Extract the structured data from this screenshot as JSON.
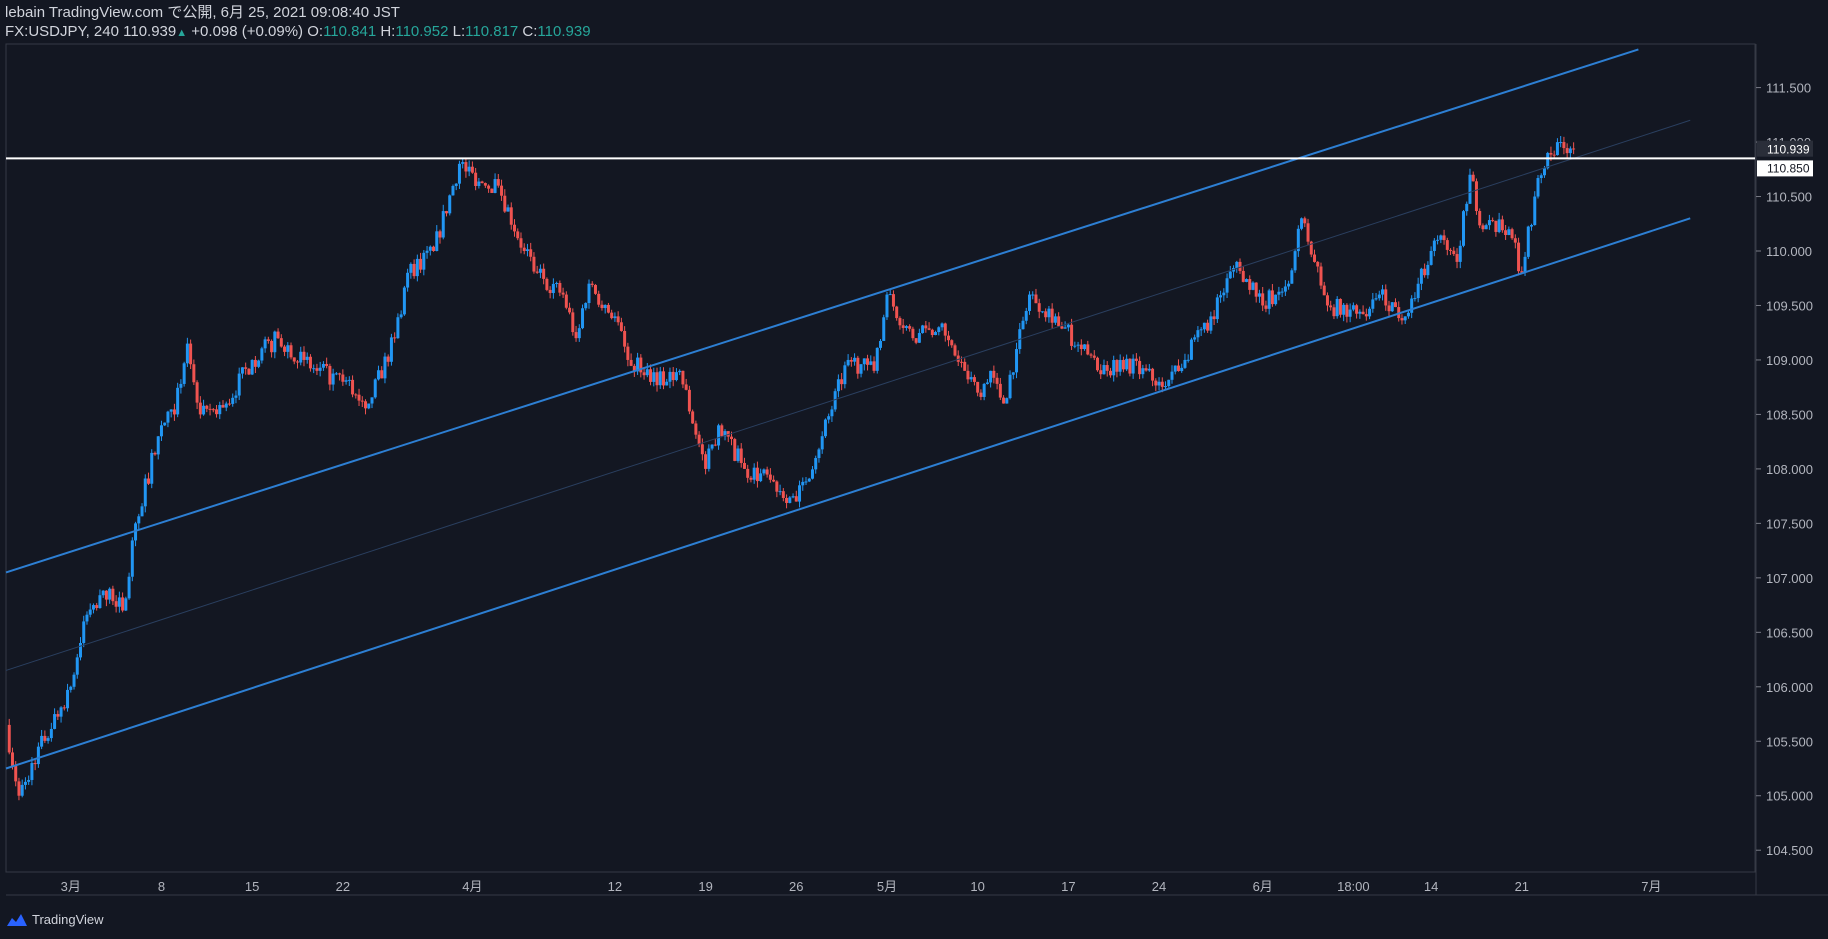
{
  "header": {
    "published": "lebain TradingView.com で公開, 6月 25, 2021 09:08:40 JST",
    "symbol": "FX:USDJPY, 240",
    "last": "110.939",
    "change": "+0.098 (+0.09%)",
    "o_label": "O:",
    "o_value": "110.841",
    "h_label": "H:",
    "h_value": "110.952",
    "l_label": "L:",
    "l_value": "110.817",
    "c_label": "C:",
    "c_value": "110.939"
  },
  "footer": {
    "brand": "TradingView"
  },
  "colors": {
    "background": "#131722",
    "up": "#2196f3",
    "down": "#ef5350",
    "channel": "#2d7fd3",
    "text": "#d1d4dc",
    "accent": "#26a69a"
  },
  "chart_data": {
    "type": "candlestick",
    "symbol": "USDJPY",
    "interval": "240",
    "x_tick_labels": [
      "3月",
      "8",
      "15",
      "22",
      "4月",
      "12",
      "19",
      "26",
      "5月",
      "10",
      "17",
      "24",
      "6月",
      "18:00",
      "14",
      "21",
      "7月"
    ],
    "y_tick_labels": [
      "111.500",
      "111.000",
      "110.500",
      "110.000",
      "109.500",
      "109.000",
      "108.500",
      "108.000",
      "107.500",
      "107.000",
      "106.500",
      "106.000",
      "105.500",
      "105.000",
      "104.500"
    ],
    "ylim": [
      104.3,
      111.9
    ],
    "horizontal_line": 110.85,
    "price_labels": [
      "110.939",
      "110.850"
    ],
    "channel": {
      "upper": [
        [
          "2021-02-24",
          107.05
        ],
        [
          "2021-06-30",
          111.85
        ]
      ],
      "lower": [
        [
          "2021-02-24",
          105.25
        ],
        [
          "2021-07-04",
          110.3
        ]
      ],
      "mid": [
        [
          "2021-02-24",
          106.15
        ],
        [
          "2021-07-04",
          111.2
        ]
      ]
    },
    "path": [
      [
        "2021-02-24",
        105.65
      ],
      [
        "2021-02-25",
        105.0
      ],
      [
        "2021-02-26",
        105.3
      ],
      [
        "2021-03-01",
        106.0
      ],
      [
        "2021-03-02",
        106.6
      ],
      [
        "2021-03-04",
        106.9
      ],
      [
        "2021-03-05",
        106.7
      ],
      [
        "2021-03-06",
        107.5
      ],
      [
        "2021-03-08",
        108.4
      ],
      [
        "2021-03-09",
        108.5
      ],
      [
        "2021-03-10",
        109.15
      ],
      [
        "2021-03-11",
        108.5
      ],
      [
        "2021-03-13",
        108.6
      ],
      [
        "2021-03-15",
        109.0
      ],
      [
        "2021-03-17",
        109.2
      ],
      [
        "2021-03-19",
        109.0
      ],
      [
        "2021-03-20",
        108.9
      ],
      [
        "2021-03-22",
        108.8
      ],
      [
        "2021-03-24",
        108.6
      ],
      [
        "2021-03-26",
        109.2
      ],
      [
        "2021-03-27",
        109.8
      ],
      [
        "2021-03-29",
        110.0
      ],
      [
        "2021-03-31",
        110.8
      ],
      [
        "2021-04-02",
        110.6
      ],
      [
        "2021-04-03",
        110.6
      ],
      [
        "2021-04-05",
        110.0
      ],
      [
        "2021-04-06",
        109.8
      ],
      [
        "2021-04-08",
        109.6
      ],
      [
        "2021-04-09",
        109.2
      ],
      [
        "2021-04-10",
        109.7
      ],
      [
        "2021-04-12",
        109.4
      ],
      [
        "2021-04-13",
        109.0
      ],
      [
        "2021-04-16",
        108.8
      ],
      [
        "2021-04-17",
        108.9
      ],
      [
        "2021-04-19",
        108.0
      ],
      [
        "2021-04-20",
        108.4
      ],
      [
        "2021-04-22",
        108.0
      ],
      [
        "2021-04-24",
        107.9
      ],
      [
        "2021-04-26",
        107.7
      ],
      [
        "2021-04-28",
        108.3
      ],
      [
        "2021-04-30",
        109.0
      ],
      [
        "2021-05-02",
        108.9
      ],
      [
        "2021-05-03",
        109.6
      ],
      [
        "2021-05-05",
        109.2
      ],
      [
        "2021-05-07",
        109.3
      ],
      [
        "2021-05-09",
        108.9
      ],
      [
        "2021-05-10",
        108.7
      ],
      [
        "2021-05-11",
        108.9
      ],
      [
        "2021-05-12",
        108.6
      ],
      [
        "2021-05-13",
        109.1
      ],
      [
        "2021-05-14",
        109.6
      ],
      [
        "2021-05-16",
        109.4
      ],
      [
        "2021-05-18",
        109.1
      ],
      [
        "2021-05-20",
        108.9
      ],
      [
        "2021-05-21",
        109.0
      ],
      [
        "2021-05-24",
        108.8
      ],
      [
        "2021-05-26",
        109.0
      ],
      [
        "2021-05-28",
        109.4
      ],
      [
        "2021-05-30",
        109.9
      ],
      [
        "2021-06-01",
        109.5
      ],
      [
        "2021-06-03",
        109.7
      ],
      [
        "2021-06-04",
        110.3
      ],
      [
        "2021-06-06",
        109.5
      ],
      [
        "2021-06-09",
        109.4
      ],
      [
        "2021-06-10",
        109.6
      ],
      [
        "2021-06-12",
        109.4
      ],
      [
        "2021-06-14",
        110.0
      ],
      [
        "2021-06-15",
        110.1
      ],
      [
        "2021-06-16",
        109.9
      ],
      [
        "2021-06-17",
        110.7
      ],
      [
        "2021-06-18",
        110.2
      ],
      [
        "2021-06-20",
        110.2
      ],
      [
        "2021-06-21",
        109.8
      ],
      [
        "2021-06-22",
        110.5
      ],
      [
        "2021-06-23",
        110.9
      ],
      [
        "2021-06-24",
        111.0
      ],
      [
        "2021-06-25",
        110.94
      ]
    ]
  }
}
